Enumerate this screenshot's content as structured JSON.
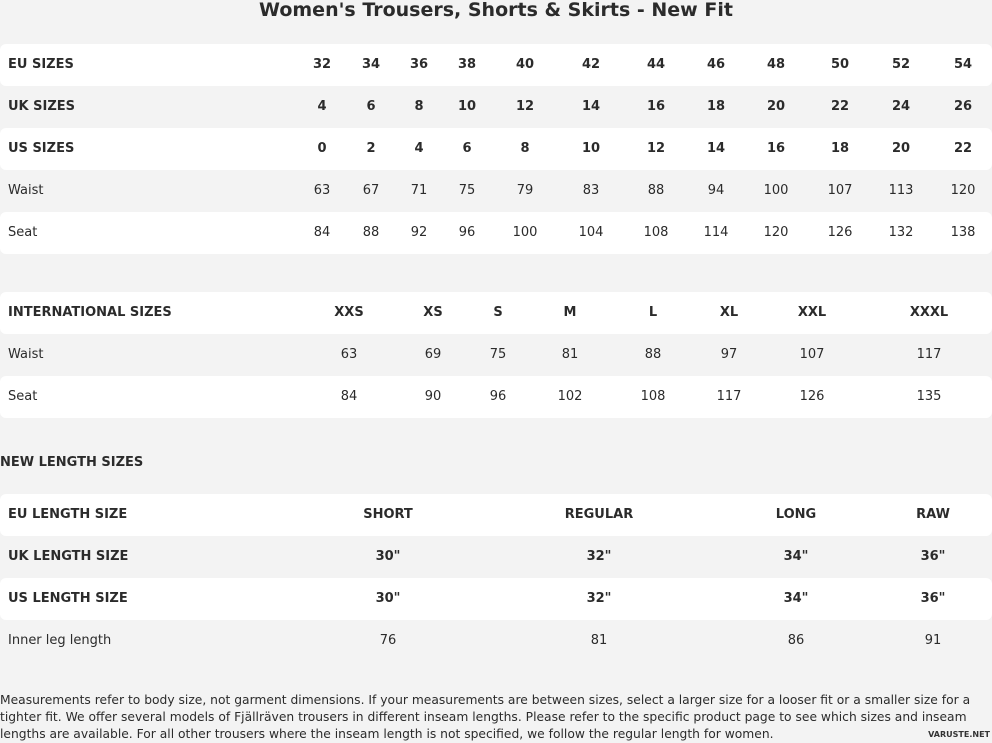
{
  "title": "Women's Trousers, Shorts & Skirts - New Fit",
  "size_table": {
    "rows": [
      {
        "label": "EU SIZES",
        "bold": true,
        "values": [
          "32",
          "34",
          "36",
          "38",
          "40",
          "42",
          "44",
          "46",
          "48",
          "50",
          "52",
          "54"
        ]
      },
      {
        "label": "UK SIZES",
        "bold": true,
        "values": [
          "4",
          "6",
          "8",
          "10",
          "12",
          "14",
          "16",
          "18",
          "20",
          "22",
          "24",
          "26"
        ]
      },
      {
        "label": "US SIZES",
        "bold": true,
        "values": [
          "0",
          "2",
          "4",
          "6",
          "8",
          "10",
          "12",
          "14",
          "16",
          "18",
          "20",
          "22"
        ]
      },
      {
        "label": "Waist",
        "bold": false,
        "values": [
          "63",
          "67",
          "71",
          "75",
          "79",
          "83",
          "88",
          "94",
          "100",
          "107",
          "113",
          "120"
        ]
      },
      {
        "label": "Seat",
        "bold": false,
        "values": [
          "84",
          "88",
          "92",
          "96",
          "100",
          "104",
          "108",
          "114",
          "120",
          "126",
          "132",
          "138"
        ]
      }
    ]
  },
  "international_table": {
    "rows": [
      {
        "label": "INTERNATIONAL SIZES",
        "bold": true,
        "values": [
          "XXS",
          "XS",
          "S",
          "M",
          "L",
          "XL",
          "XXL",
          "XXXL"
        ]
      },
      {
        "label": "Waist",
        "bold": false,
        "values": [
          "63",
          "69",
          "75",
          "81",
          "88",
          "97",
          "107",
          "117"
        ]
      },
      {
        "label": "Seat",
        "bold": false,
        "values": [
          "84",
          "90",
          "96",
          "102",
          "108",
          "117",
          "126",
          "135"
        ]
      }
    ]
  },
  "length_heading": "NEW LENGTH SIZES",
  "length_table": {
    "rows": [
      {
        "label": "EU LENGTH SIZE",
        "bold": true,
        "values": [
          "SHORT",
          "REGULAR",
          "LONG",
          "RAW"
        ]
      },
      {
        "label": "UK LENGTH SIZE",
        "bold": true,
        "values": [
          "30\"",
          "32\"",
          "34\"",
          "36\""
        ]
      },
      {
        "label": "US LENGTH SIZE",
        "bold": true,
        "values": [
          "30\"",
          "32\"",
          "34\"",
          "36\""
        ]
      },
      {
        "label": "Inner leg length",
        "bold": false,
        "values": [
          "76",
          "81",
          "86",
          "91"
        ]
      }
    ]
  },
  "note": "Measurements refer to body size, not garment dimensions. If your measurements are between sizes, select a larger size for a looser fit or a smaller size for a tighter fit. We offer several models of Fjällräven trousers in different inseam lengths. Please refer to the specific product page to see which sizes and inseam lengths are available. For all other trousers where the inseam length is not specified, we follow the regular length for women.",
  "watermark": "VARUSTE.NET"
}
